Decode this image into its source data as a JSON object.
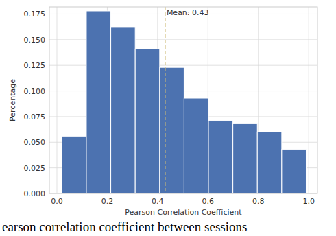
{
  "chart_data": {
    "type": "histogram",
    "x_label": "Pearson Correlation Coefficient",
    "y_label": "Percentage",
    "caption": "earson correlation coefficient between sessions",
    "bins": [
      0.02,
      0.117,
      0.214,
      0.311,
      0.408,
      0.505,
      0.602,
      0.699,
      0.796,
      0.893,
      0.99
    ],
    "values": [
      0.056,
      0.178,
      0.162,
      0.141,
      0.123,
      0.093,
      0.071,
      0.068,
      0.06,
      0.043
    ],
    "color": "#4c72b0",
    "xlim": [
      -0.03,
      1.035
    ],
    "ylim": [
      0,
      0.182
    ],
    "xticks": [
      {
        "value": 0,
        "label": "0.0"
      },
      {
        "value": 0.2,
        "label": "0.2"
      },
      {
        "value": 0.4,
        "label": "0.4"
      },
      {
        "value": 0.6,
        "label": "0.6"
      },
      {
        "value": 0.8,
        "label": "0.8"
      },
      {
        "value": 1,
        "label": "1.0"
      }
    ],
    "yticks": [
      {
        "value": 0,
        "label": "0.000"
      },
      {
        "value": 0.025,
        "label": "0.025"
      },
      {
        "value": 0.05,
        "label": "0.050"
      },
      {
        "value": 0.075,
        "label": "0.075"
      },
      {
        "value": 0.1,
        "label": "0.100"
      },
      {
        "value": 0.125,
        "label": "0.125"
      },
      {
        "value": 0.15,
        "label": "0.150"
      },
      {
        "value": 0.175,
        "label": "0.175"
      }
    ],
    "grid": true,
    "annotations": [
      {
        "label": "Mean: 0.43",
        "x": 0.43,
        "color": "#ccb974",
        "line_style": "dashed"
      }
    ]
  }
}
